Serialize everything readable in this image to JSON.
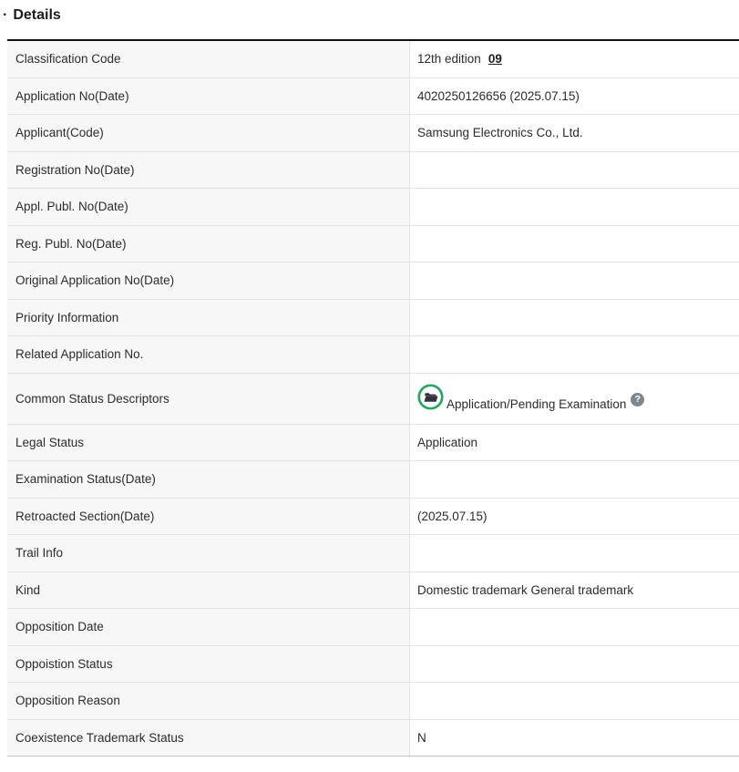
{
  "header": {
    "bullet": "·",
    "title": "Details"
  },
  "icons": {
    "status_icon": "open-folder-in-green-circle-icon",
    "help_glyph": "?"
  },
  "colors": {
    "accent_green": "#27a662",
    "folder_dark": "#33333e",
    "help_gray": "#7e8790",
    "label_bg": "#f7f7f7",
    "row_border": "#e2e2e2",
    "table_top_border": "#121212",
    "table_bottom_border": "#c4c4c4"
  },
  "table": {
    "rows": [
      {
        "label": "Classification Code",
        "value": "12th edition",
        "link": "09"
      },
      {
        "label": "Application No(Date)",
        "value": "4020250126656 (2025.07.15)"
      },
      {
        "label": "Applicant(Code)",
        "value": "Samsung Electronics Co., Ltd."
      },
      {
        "label": "Registration No(Date)",
        "value": ""
      },
      {
        "label": "Appl. Publ. No(Date)",
        "value": ""
      },
      {
        "label": "Reg. Publ. No(Date)",
        "value": ""
      },
      {
        "label": "Original Application No(Date)",
        "value": ""
      },
      {
        "label": "Priority Information",
        "value": ""
      },
      {
        "label": "Related Application No.",
        "value": ""
      },
      {
        "label": "Common Status Descriptors",
        "value": "Application/Pending Examination",
        "icon": "open-folder",
        "help": "?"
      },
      {
        "label": "Legal Status",
        "value": "Application"
      },
      {
        "label": "Examination Status(Date)",
        "value": ""
      },
      {
        "label": "Retroacted Section(Date)",
        "value": "(2025.07.15)"
      },
      {
        "label": "Trail Info",
        "value": ""
      },
      {
        "label": "Kind",
        "value": "Domestic trademark General trademark"
      },
      {
        "label": "Opposition Date",
        "value": ""
      },
      {
        "label": "Oppoistion Status",
        "value": ""
      },
      {
        "label": "Opposition Reason",
        "value": ""
      },
      {
        "label": "Coexistence Trademark Status",
        "value": "N"
      }
    ]
  }
}
